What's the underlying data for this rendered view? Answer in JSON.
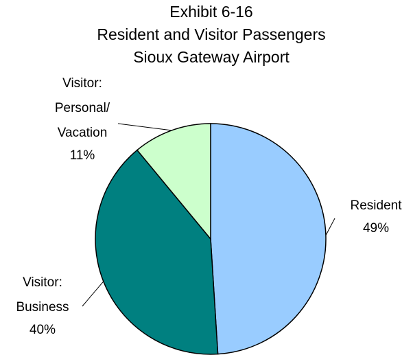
{
  "chart_data": {
    "type": "pie",
    "title": [
      "Exhibit 6-16",
      "Resident and Visitor Passengers",
      "Sioux Gateway Airport"
    ],
    "categories": [
      "Resident",
      "Visitor: Business",
      "Visitor: Personal/ Vacation"
    ],
    "values": [
      49,
      40,
      11
    ],
    "value_labels": [
      "49%",
      "40%",
      "11%"
    ],
    "colors": [
      "#99ccff",
      "#008080",
      "#ccffcc"
    ]
  }
}
